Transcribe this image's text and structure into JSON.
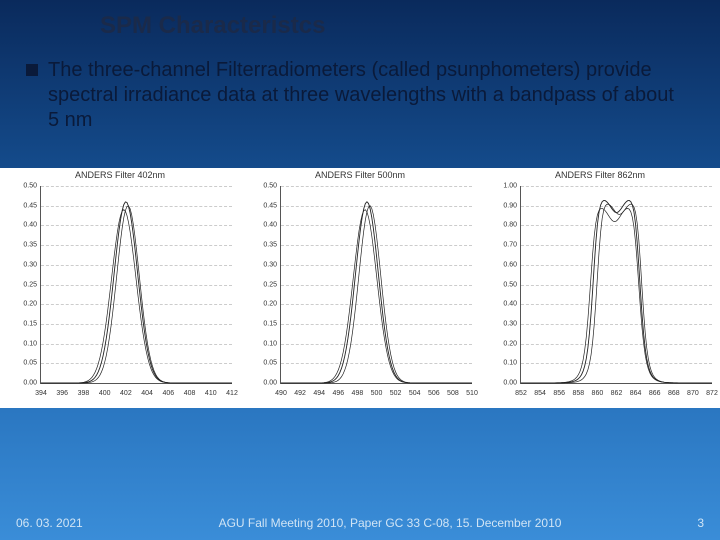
{
  "title": "SPM Characteristcs",
  "bullet": "The three-channel Filterradiometers (called psunphometers) provide spectral irradiance data at three wavelengths with a bandpass of about 5 nm",
  "charts_bg": "#ffffff",
  "charts": [
    {
      "title": "ANDERS Filter 402nm",
      "ylim": [
        0,
        0.5
      ],
      "ytick_step": 0.05,
      "ytick_decimals": 2,
      "xlim": [
        394,
        412
      ],
      "xtick_step": 2,
      "shape": "gaussian",
      "curves": [
        {
          "peak": 0.46,
          "center": 402.0,
          "width": 2.6,
          "color": "#222",
          "sw": 0.9
        },
        {
          "peak": 0.45,
          "center": 402.2,
          "width": 2.5,
          "color": "#222",
          "sw": 0.7
        },
        {
          "peak": 0.44,
          "center": 401.8,
          "width": 2.7,
          "color": "#222",
          "sw": 0.7
        }
      ]
    },
    {
      "title": "ANDERS Filter 500nm",
      "ylim": [
        0,
        0.5
      ],
      "ytick_step": 0.05,
      "ytick_decimals": 2,
      "xlim": [
        490,
        510
      ],
      "xtick_step": 2,
      "shape": "gaussian",
      "curves": [
        {
          "peak": 0.46,
          "center": 499.0,
          "width": 2.8,
          "color": "#222",
          "sw": 0.9
        },
        {
          "peak": 0.45,
          "center": 499.3,
          "width": 2.7,
          "color": "#222",
          "sw": 0.7
        },
        {
          "peak": 0.44,
          "center": 498.8,
          "width": 2.9,
          "color": "#222",
          "sw": 0.7
        }
      ]
    },
    {
      "title": "ANDERS Filter 862nm",
      "ylim": [
        0,
        1.0
      ],
      "ytick_step": 0.1,
      "ytick_decimals": 2,
      "xlim": [
        852,
        872
      ],
      "xtick_step": 2,
      "shape": "flattop",
      "curves": [
        {
          "peak": 0.94,
          "center": 862.0,
          "width": 5.0,
          "color": "#222",
          "sw": 0.9,
          "dip": 0.08
        },
        {
          "peak": 0.92,
          "center": 862.3,
          "width": 4.8,
          "color": "#222",
          "sw": 0.7,
          "dip": 0.07
        },
        {
          "peak": 0.9,
          "center": 861.8,
          "width": 5.2,
          "color": "#222",
          "sw": 0.7,
          "dip": 0.09
        }
      ]
    }
  ],
  "footer": {
    "date": "06. 03. 2021",
    "center": "AGU Fall Meeting 2010, Paper GC 33 C-08, 15. December 2010",
    "page": "3"
  }
}
